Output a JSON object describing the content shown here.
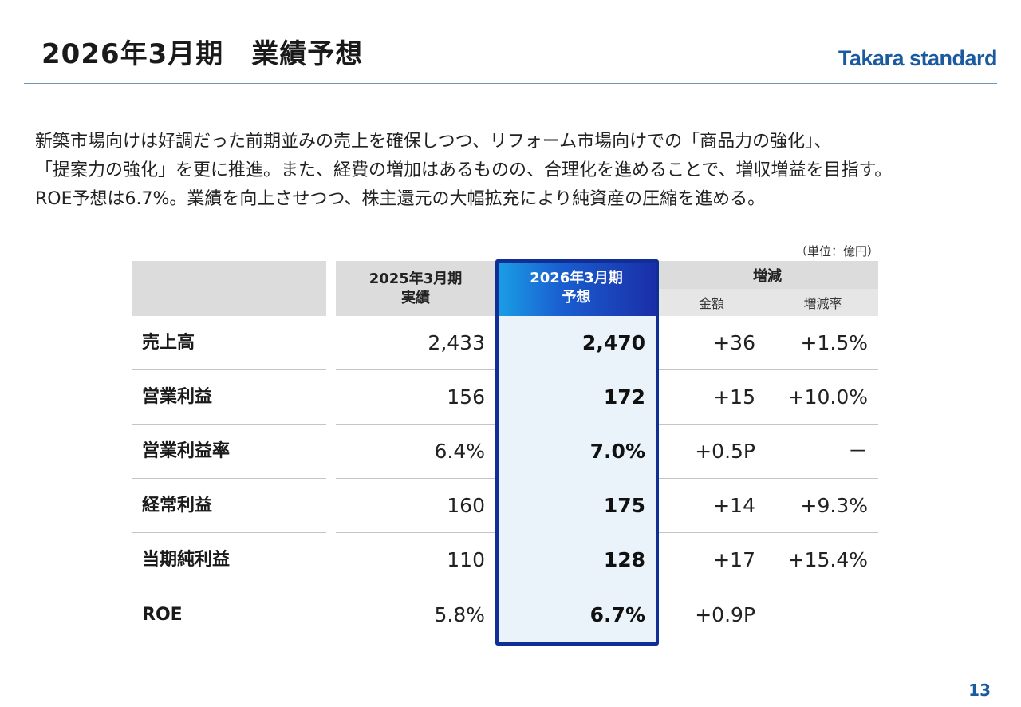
{
  "header": {
    "title": "2026年3月期　業績予想",
    "logo_text": "Takara standard"
  },
  "intro": {
    "lines": [
      "新築市場向けは好調だった前期並みの売上を確保しつつ、リフォーム市場向けでの「商品力の強化」、",
      "「提案力の強化」を更に推進。また、経費の増加はあるものの、合理化を進めることで、増収増益を目指す。",
      "ROE予想は6.7%。業績を向上させつつ、株主還元の大幅拡充により純資産の圧縮を進める。"
    ]
  },
  "table": {
    "unit": "（単位：億円）",
    "headers": {
      "prev_line1": "2025年3月期",
      "prev_line2": "実績",
      "forecast_line1": "2026年3月期",
      "forecast_line2": "予想",
      "change": "増減",
      "change_amount": "金額",
      "change_rate": "増減率"
    },
    "rows": [
      {
        "label": "売上高",
        "prev": "2,433",
        "forecast": "2,470",
        "amount": "+36",
        "rate": "+1.5%"
      },
      {
        "label": "営業利益",
        "prev": "156",
        "forecast": "172",
        "amount": "+15",
        "rate": "+10.0%"
      },
      {
        "label": "営業利益率",
        "prev": "6.4%",
        "forecast": "7.0%",
        "amount": "+0.5P",
        "rate": "－"
      },
      {
        "label": "経常利益",
        "prev": "160",
        "forecast": "175",
        "amount": "+14",
        "rate": "+9.3%"
      },
      {
        "label": "当期純利益",
        "prev": "110",
        "forecast": "128",
        "amount": "+17",
        "rate": "+15.4%"
      },
      {
        "label": "ROE",
        "prev": "5.8%",
        "forecast": "6.7%",
        "amount": "+0.9P",
        "rate": ""
      }
    ]
  },
  "footer": {
    "page_number": "13"
  },
  "colors": {
    "brand": "#1b5a9e",
    "forecast_frame": "#0f2f96",
    "forecast_fill": "#eaf3f9",
    "header_gray": "#dcdcdc"
  }
}
